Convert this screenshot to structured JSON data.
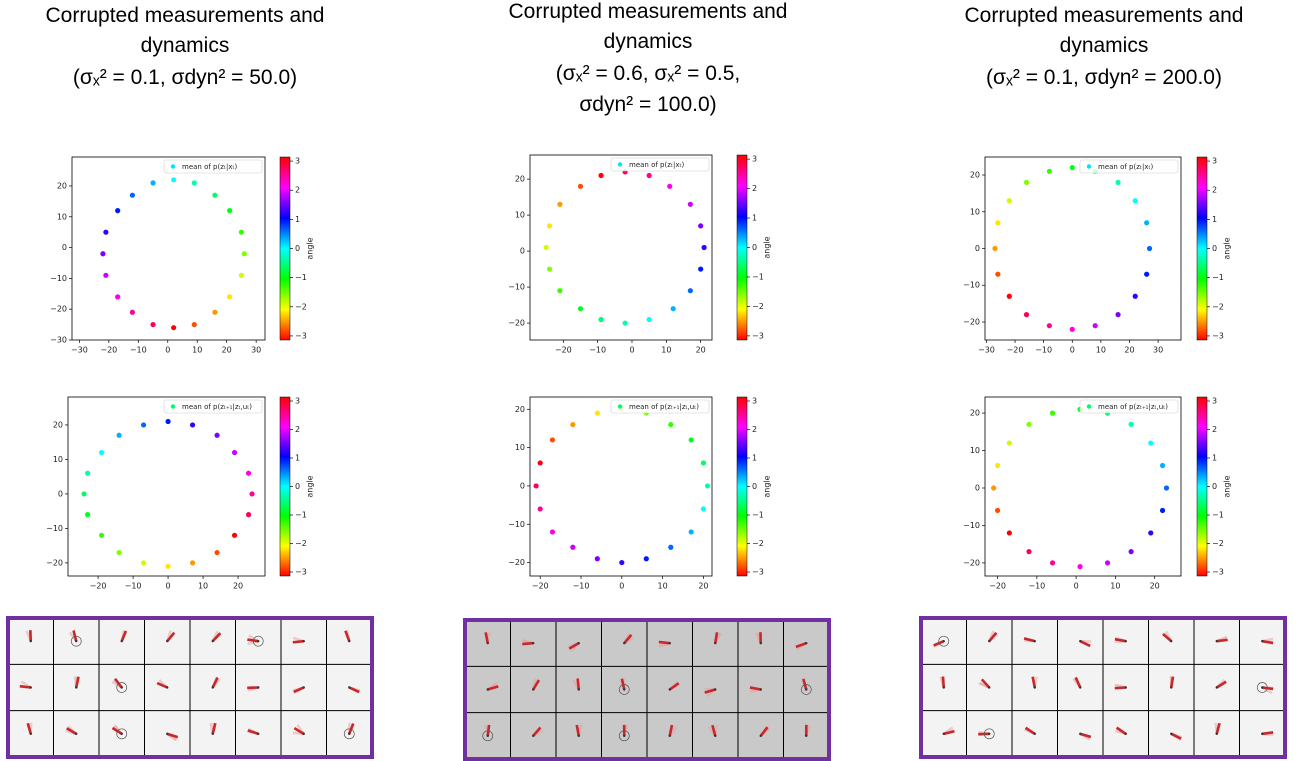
{
  "figure": {
    "columns": [
      {
        "title": [
          "Corrupted measurements and",
          "dynamics",
          "(σₓ² = 0.1, σdyn² = 50.0)"
        ]
      },
      {
        "title": [
          "Corrupted measurements and",
          "dynamics",
          "(σₓ² = 0.6, σₓ² = 0.5,",
          "σdyn² = 100.0)"
        ]
      },
      {
        "title": [
          "Corrupted measurements and",
          "dynamics",
          "(σₓ² = 0.1, σdyn² = 200.0)"
        ]
      }
    ]
  },
  "chart_data": [
    {
      "type": "scatter",
      "legend": "mean of p(zₜ|xₜ)",
      "legend_color": "#00e5ff",
      "legend_loc": "upper right",
      "x": [
        26,
        25,
        21,
        16,
        9,
        2,
        -5,
        -12,
        -17,
        -21,
        -22,
        -21,
        -17,
        -12,
        -5,
        2,
        9,
        16,
        21,
        25
      ],
      "y": [
        -2,
        5,
        12,
        17,
        21,
        22,
        21,
        17,
        12,
        5,
        -2,
        -9,
        -16,
        -21,
        -25,
        -26,
        -25,
        -21,
        -16,
        -9
      ],
      "c": [
        -1.57,
        -1.26,
        -0.94,
        -0.63,
        -0.31,
        0,
        0.31,
        0.63,
        0.94,
        1.26,
        1.57,
        1.88,
        2.2,
        2.51,
        2.83,
        3.1,
        -2.83,
        -2.51,
        -2.2,
        -1.88
      ],
      "colormap": "hsv",
      "clim": [
        -3.14,
        3.14
      ],
      "clabel": "angle",
      "cticks": [
        {
          "value": -3,
          "label": "−3"
        },
        {
          "value": -2,
          "label": "−2"
        },
        {
          "value": -1,
          "label": "−1"
        },
        0,
        1,
        2,
        3
      ],
      "xlim": [
        -32.5,
        33
      ],
      "ylim": [
        -30,
        29.4
      ],
      "xticks": [
        {
          "value": -30,
          "label": "−30"
        },
        {
          "value": -20,
          "label": "−20"
        },
        {
          "value": -10,
          "label": "−10"
        },
        0,
        10,
        20,
        30
      ],
      "yticks": [
        {
          "value": -30,
          "label": "−30"
        },
        {
          "value": -20,
          "label": "−20"
        },
        {
          "value": -10,
          "label": "−10"
        },
        0,
        10,
        20
      ]
    },
    {
      "type": "scatter",
      "legend": "mean of p(zₜ|xₜ)",
      "legend_color": "#00e5ff",
      "legend_loc": "upper right",
      "x": [
        21,
        20,
        17,
        11,
        5,
        -2,
        -9,
        -15,
        -21,
        -24,
        -25,
        -24,
        -21,
        -15,
        -9,
        -2,
        5,
        12,
        17,
        20
      ],
      "y": [
        1,
        7,
        13,
        18,
        21,
        22,
        21,
        18,
        13,
        7,
        1,
        -5,
        -11,
        -16,
        -19,
        -20,
        -19,
        -16,
        -11,
        -5
      ],
      "c": [
        1.26,
        1.57,
        1.88,
        2.2,
        2.51,
        2.83,
        3.1,
        -2.83,
        -2.51,
        -2.2,
        -1.88,
        -1.57,
        -1.26,
        -0.94,
        -0.63,
        -0.31,
        0,
        0.31,
        0.63,
        0.94
      ],
      "colormap": "hsv",
      "clim": [
        -3.14,
        3.14
      ],
      "clabel": "angle",
      "cticks": [
        {
          "value": -3,
          "label": "−3"
        },
        {
          "value": -2,
          "label": "−2"
        },
        {
          "value": -1,
          "label": "−1"
        },
        0,
        1,
        2,
        3
      ],
      "xlim": [
        -29.7,
        23.3
      ],
      "ylim": [
        -24.7,
        26.7
      ],
      "xticks": [
        {
          "value": -20,
          "label": "−20"
        },
        {
          "value": -10,
          "label": "−10"
        },
        0,
        10,
        20
      ],
      "yticks": [
        {
          "value": -20,
          "label": "−20"
        },
        {
          "value": -10,
          "label": "−10"
        },
        0,
        10,
        20
      ]
    },
    {
      "type": "scatter",
      "legend": "mean of p(zₜ|xₜ)",
      "legend_color": "#00e5ff",
      "legend_loc": "upper right",
      "x": [
        27,
        26,
        22,
        16,
        8,
        0,
        -8,
        -16,
        -22,
        -26,
        -27,
        -26,
        -22,
        -16,
        -8,
        0,
        8,
        16,
        22,
        26
      ],
      "y": [
        0,
        7,
        13,
        18,
        21,
        22,
        21,
        18,
        13,
        7,
        0,
        -7,
        -13,
        -18,
        -21,
        -22,
        -21,
        -18,
        -13,
        -7
      ],
      "c": [
        0.63,
        0.31,
        0,
        -0.31,
        -0.63,
        -0.94,
        -1.26,
        -1.57,
        -1.88,
        -2.2,
        -2.51,
        -2.83,
        3.1,
        2.83,
        2.51,
        2.2,
        1.88,
        1.57,
        1.26,
        0.94
      ],
      "colormap": "hsv",
      "clim": [
        -3.14,
        3.14
      ],
      "clabel": "angle",
      "cticks": [
        {
          "value": -3,
          "label": "−3"
        },
        {
          "value": -2,
          "label": "−2"
        },
        {
          "value": -1,
          "label": "−1"
        },
        0,
        1,
        2,
        3
      ],
      "xlim": [
        -30.5,
        38
      ],
      "ylim": [
        -24.9,
        24.9
      ],
      "xticks": [
        {
          "value": -30,
          "label": "−30"
        },
        {
          "value": -20,
          "label": "−20"
        },
        {
          "value": -10,
          "label": "−10"
        },
        0,
        10,
        20,
        30
      ],
      "yticks": [
        {
          "value": -20,
          "label": "−20"
        },
        {
          "value": -10,
          "label": "−10"
        },
        0,
        10,
        20
      ]
    },
    {
      "type": "scatter",
      "legend": "mean of p(zₜ₊₁|zₜ,uₜ)",
      "legend_color": "#00ff66",
      "legend_loc": "upper right",
      "x": [
        24,
        23,
        19,
        14,
        7,
        0,
        -7,
        -14,
        -19,
        -23,
        -24,
        -23,
        -19,
        -14,
        -7,
        0,
        7,
        14,
        19,
        23
      ],
      "y": [
        0,
        6,
        12,
        17,
        20,
        21,
        20,
        17,
        12,
        6,
        0,
        -6,
        -12,
        -17,
        -20,
        -21,
        -20,
        -17,
        -12,
        -6
      ],
      "c": [
        2.51,
        2.2,
        1.88,
        1.57,
        1.26,
        0.94,
        0.63,
        0.31,
        0,
        -0.31,
        -0.63,
        -0.94,
        -1.26,
        -1.57,
        -1.88,
        -2.2,
        -2.51,
        -2.83,
        3.1,
        2.83
      ],
      "colormap": "hsv",
      "clim": [
        -3.14,
        3.14
      ],
      "clabel": "angle",
      "cticks": [
        {
          "value": -3,
          "label": "−3"
        },
        {
          "value": -2,
          "label": "−2"
        },
        {
          "value": -1,
          "label": "−1"
        },
        0,
        1,
        2,
        3
      ],
      "xlim": [
        -28.6,
        27.7
      ],
      "ylim": [
        -23.8,
        28.1
      ],
      "xticks": [
        {
          "value": -20,
          "label": "−20"
        },
        {
          "value": -10,
          "label": "−10"
        },
        0,
        10,
        20
      ],
      "yticks": [
        {
          "value": -20,
          "label": "−20"
        },
        {
          "value": -10,
          "label": "−10"
        },
        0,
        10,
        20
      ]
    },
    {
      "type": "scatter",
      "legend": "mean of p(zₜ₊₁|zₜ,uₜ)",
      "legend_color": "#00ff66",
      "legend_loc": "upper right",
      "x": [
        21,
        20,
        17,
        12,
        6,
        0,
        -6,
        -12,
        -17,
        -20,
        -21,
        -20,
        -17,
        -12,
        -6,
        0,
        6,
        12,
        17,
        20
      ],
      "y": [
        0,
        6,
        12,
        16,
        19,
        20,
        19,
        16,
        12,
        6,
        0,
        -6,
        -12,
        -16,
        -19,
        -20,
        -19,
        -16,
        -12,
        -6
      ],
      "c": [
        -0.31,
        -0.63,
        -0.94,
        -1.26,
        -1.57,
        -1.88,
        -2.2,
        -2.51,
        -2.83,
        3.1,
        2.83,
        2.51,
        2.2,
        1.88,
        1.57,
        1.26,
        0.94,
        0.63,
        0.31,
        0
      ],
      "colormap": "hsv",
      "clim": [
        -3.14,
        3.14
      ],
      "clabel": "angle",
      "cticks": [
        {
          "value": -3,
          "label": "−3"
        },
        {
          "value": -2,
          "label": "−2"
        },
        {
          "value": -1,
          "label": "−1"
        },
        0,
        1,
        2,
        3
      ],
      "xlim": [
        -22.5,
        22.1
      ],
      "ylim": [
        -23.5,
        23.2
      ],
      "xticks": [
        {
          "value": -20,
          "label": "−20"
        },
        {
          "value": -10,
          "label": "−10"
        },
        0,
        10,
        20
      ],
      "yticks": [
        {
          "value": -20,
          "label": "−20"
        },
        {
          "value": -10,
          "label": "−10"
        },
        0,
        10,
        20
      ]
    },
    {
      "type": "scatter",
      "legend": "mean of p(zₜ₊₁|zₜ,uₜ)",
      "legend_color": "#00ff66",
      "legend_loc": "upper right",
      "x": [
        23,
        22,
        19,
        14,
        8,
        1,
        -6,
        -12,
        -17,
        -20,
        -21,
        -20,
        -17,
        -12,
        -6,
        1,
        8,
        14,
        19,
        22
      ],
      "y": [
        0,
        6,
        12,
        17,
        20,
        21,
        20,
        17,
        12,
        6,
        0,
        -6,
        -12,
        -17,
        -20,
        -21,
        -20,
        -17,
        -12,
        -6
      ],
      "c": [
        0.63,
        0.31,
        0,
        -0.31,
        -0.63,
        -0.94,
        -1.26,
        -1.57,
        -1.88,
        -2.2,
        -2.51,
        -2.83,
        3.1,
        2.83,
        2.51,
        2.2,
        1.88,
        1.57,
        1.26,
        0.94
      ],
      "colormap": "hsv",
      "clim": [
        -3.14,
        3.14
      ],
      "clabel": "angle",
      "cticks": [
        {
          "value": -3,
          "label": "−3"
        },
        {
          "value": -2,
          "label": "−2"
        },
        {
          "value": -1,
          "label": "−1"
        },
        0,
        1,
        2,
        3
      ],
      "xlim": [
        -23.2,
        26.7
      ],
      "ylim": [
        -23.5,
        24.3
      ],
      "xticks": [
        {
          "value": -20,
          "label": "−20"
        },
        {
          "value": -10,
          "label": "−10"
        },
        0,
        10,
        20
      ],
      "yticks": [
        {
          "value": -20,
          "label": "−20"
        },
        {
          "value": -10,
          "label": "−10"
        },
        0,
        10,
        20
      ]
    }
  ]
}
